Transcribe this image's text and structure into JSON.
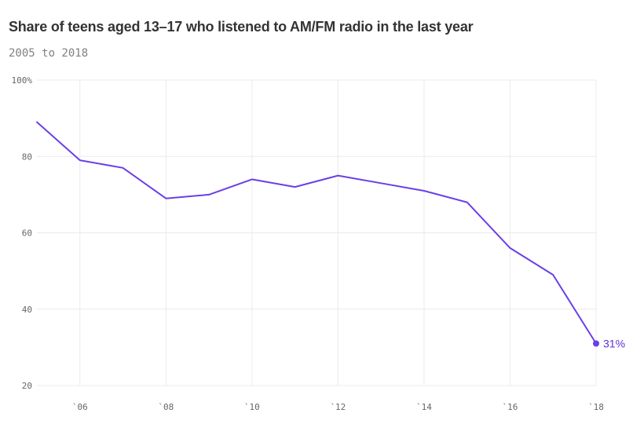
{
  "title": "Share of teens aged 13–17 who listened to AM/FM radio in the last year",
  "subtitle": "2005 to 2018",
  "colors": {
    "line": "#6b3ee8",
    "label": "#5b2fd8"
  },
  "chart_data": {
    "type": "line",
    "title": "Share of teens aged 13–17 who listened to AM/FM radio in the last year",
    "subtitle": "2005 to 2018",
    "x": [
      2005,
      2006,
      2007,
      2008,
      2009,
      2010,
      2011,
      2012,
      2013,
      2014,
      2015,
      2016,
      2017,
      2018
    ],
    "values": [
      89,
      79,
      77,
      69,
      70,
      74,
      72,
      75,
      73,
      71,
      68,
      56,
      49,
      31
    ],
    "xlim": [
      2005,
      2018
    ],
    "ylim": [
      20,
      100
    ],
    "x_ticks": [
      {
        "value": 2006,
        "label": "`06"
      },
      {
        "value": 2008,
        "label": "`08"
      },
      {
        "value": 2010,
        "label": "`10"
      },
      {
        "value": 2012,
        "label": "`12"
      },
      {
        "value": 2014,
        "label": "`14"
      },
      {
        "value": 2016,
        "label": "`16"
      },
      {
        "value": 2018,
        "label": "`18"
      }
    ],
    "x_grid": [
      2006,
      2008,
      2010,
      2012,
      2014,
      2016,
      2018
    ],
    "y_ticks": [
      {
        "value": 100,
        "label": "100%"
      },
      {
        "value": 80,
        "label": "80"
      },
      {
        "value": 60,
        "label": "60"
      },
      {
        "value": 40,
        "label": "40"
      },
      {
        "value": 20,
        "label": "20"
      }
    ],
    "grid": true,
    "end_label": "31%"
  }
}
